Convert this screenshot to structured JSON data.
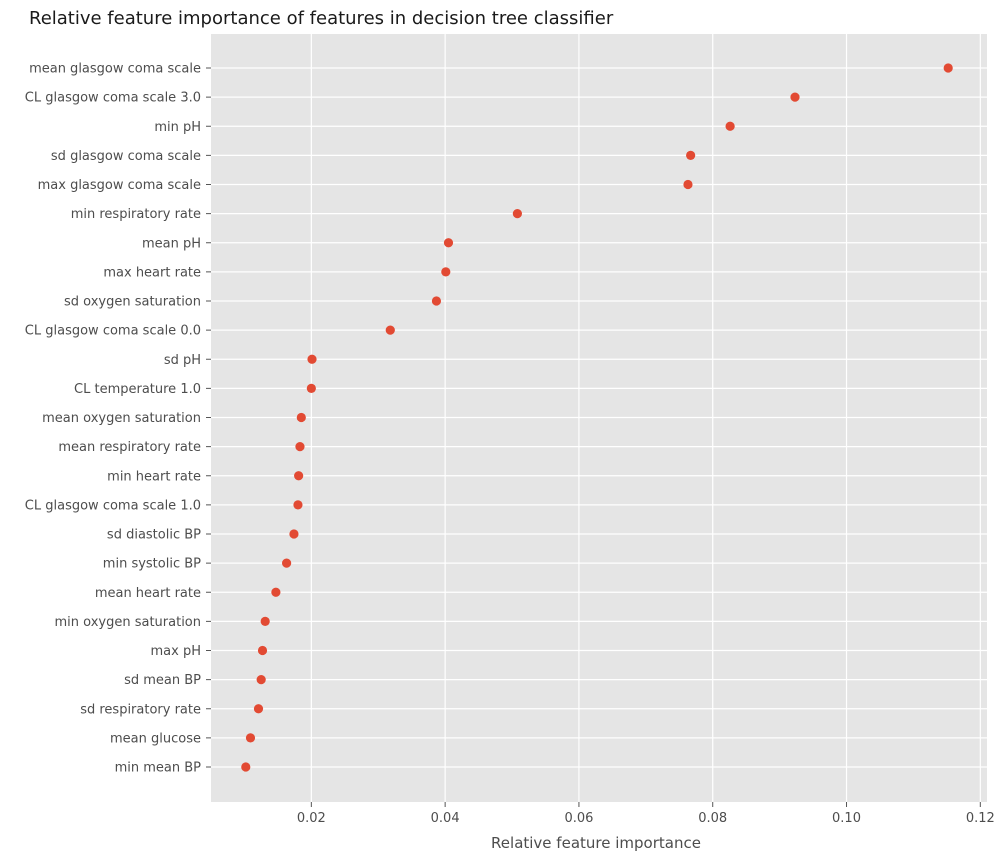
{
  "chart_data": {
    "type": "scatter",
    "title": "Relative feature importance of features in decision tree classifier",
    "xlabel": "Relative feature importance",
    "ylabel": "",
    "xlim": [
      0.005,
      0.121
    ],
    "xticks": [
      0.02,
      0.04,
      0.06,
      0.08,
      0.1,
      0.12
    ],
    "xtick_labels": [
      "0.02",
      "0.04",
      "0.06",
      "0.08",
      "0.10",
      "0.12"
    ],
    "grid": true,
    "legend": "none",
    "marker_color": "#e24a33",
    "background_color": "#e5e5e5",
    "grid_color": "#ffffff",
    "categories": [
      "mean glasgow coma scale",
      "CL glasgow coma scale 3.0",
      "min pH",
      "sd glasgow coma scale",
      "max glasgow coma scale",
      "min respiratory rate",
      "mean pH",
      "max heart rate",
      "sd oxygen saturation",
      "CL glasgow coma scale 0.0",
      "sd pH",
      "CL temperature 1.0",
      "mean oxygen saturation",
      "mean respiratory rate",
      "min heart rate",
      "CL glasgow coma scale 1.0",
      "sd diastolic BP",
      "min systolic BP",
      "mean heart rate",
      "min oxygen saturation",
      "max pH",
      "sd mean BP",
      "sd respiratory rate",
      "mean glucose",
      "min mean BP"
    ],
    "values": [
      0.1152,
      0.0923,
      0.0826,
      0.0767,
      0.0763,
      0.0508,
      0.0405,
      0.0401,
      0.0387,
      0.0318,
      0.0201,
      0.02,
      0.0185,
      0.0183,
      0.0181,
      0.018,
      0.0174,
      0.0163,
      0.0147,
      0.0131,
      0.0127,
      0.0125,
      0.0121,
      0.0109,
      0.0102
    ]
  }
}
